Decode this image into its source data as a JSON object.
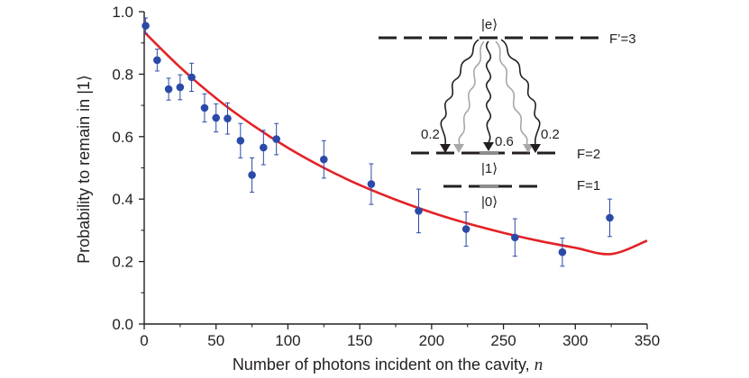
{
  "chart_data": {
    "type": "scatter",
    "xlabel": "Number of photons incident on the cavity,",
    "xlabel_var": "n",
    "ylabel": "Probability to remain in |1⟩",
    "xlim": [
      0,
      350
    ],
    "ylim": [
      0.0,
      1.0
    ],
    "x_ticks": [
      "0",
      "50",
      "100",
      "150",
      "200",
      "250",
      "300",
      "350"
    ],
    "y_ticks": [
      "0.0",
      "0.2",
      "0.4",
      "0.6",
      "0.8",
      "1.0"
    ],
    "grid": false,
    "colors": {
      "points": "#2b4aa8",
      "errorbars": "#2b4aa8",
      "fit": "#e32227",
      "axes": "#231f20"
    },
    "series": [
      {
        "values": [
          {
            "x": 1,
            "y": 0.955,
            "err": 0.025
          },
          {
            "x": 9,
            "y": 0.845,
            "err": 0.035
          },
          {
            "x": 17,
            "y": 0.752,
            "err": 0.035
          },
          {
            "x": 25,
            "y": 0.758,
            "err": 0.04
          },
          {
            "x": 33,
            "y": 0.79,
            "err": 0.045
          },
          {
            "x": 42,
            "y": 0.692,
            "err": 0.045
          },
          {
            "x": 50,
            "y": 0.66,
            "err": 0.045
          },
          {
            "x": 58,
            "y": 0.658,
            "err": 0.05
          },
          {
            "x": 67,
            "y": 0.587,
            "err": 0.055
          },
          {
            "x": 75,
            "y": 0.477,
            "err": 0.055
          },
          {
            "x": 83,
            "y": 0.565,
            "err": 0.055
          },
          {
            "x": 92,
            "y": 0.592,
            "err": 0.05
          },
          {
            "x": 125,
            "y": 0.527,
            "err": 0.06
          },
          {
            "x": 158,
            "y": 0.448,
            "err": 0.065
          },
          {
            "x": 191,
            "y": 0.362,
            "err": 0.07
          },
          {
            "x": 224,
            "y": 0.304,
            "err": 0.055
          },
          {
            "x": 258,
            "y": 0.277,
            "err": 0.06
          },
          {
            "x": 291,
            "y": 0.23,
            "err": 0.045
          },
          {
            "x": 324,
            "y": 0.34,
            "err": 0.06
          }
        ]
      },
      {
        "type": "line",
        "values": [
          {
            "x": 0,
            "y": 0.935
          },
          {
            "x": 25,
            "y": 0.822
          },
          {
            "x": 50,
            "y": 0.723
          },
          {
            "x": 75,
            "y": 0.638
          },
          {
            "x": 100,
            "y": 0.564
          },
          {
            "x": 125,
            "y": 0.5
          },
          {
            "x": 150,
            "y": 0.445
          },
          {
            "x": 175,
            "y": 0.398
          },
          {
            "x": 200,
            "y": 0.357
          },
          {
            "x": 225,
            "y": 0.322
          },
          {
            "x": 250,
            "y": 0.292
          },
          {
            "x": 275,
            "y": 0.266
          },
          {
            "x": 300,
            "y": 0.244
          },
          {
            "x": 325,
            "y": 0.224
          },
          {
            "x": 350,
            "y": 0.267
          }
        ]
      }
    ]
  },
  "inset": {
    "state_e": "|e⟩",
    "state_1": "|1⟩",
    "state_0": "|0⟩",
    "level_Fp3": "F’=3",
    "level_F2": "F=2",
    "level_F1": "F=1",
    "branch_left": "0.2",
    "branch_center": "0.6",
    "branch_right": "0.2"
  }
}
